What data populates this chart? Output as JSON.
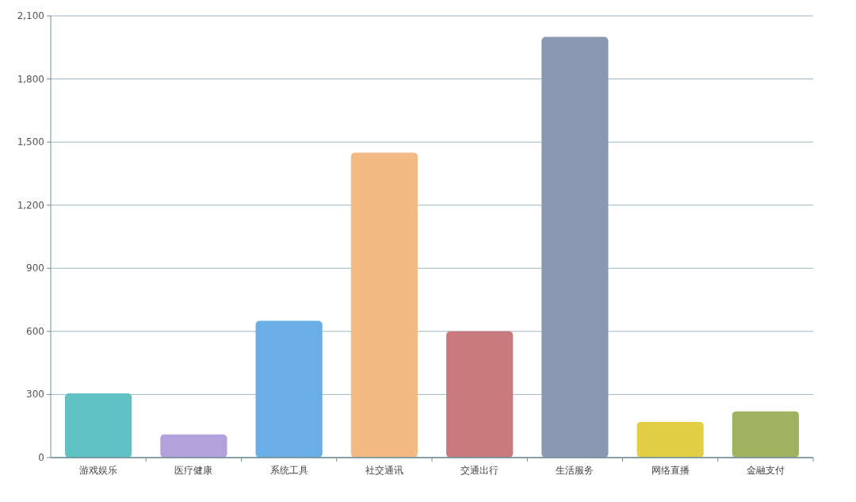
{
  "chart_data": {
    "type": "bar",
    "categories": [
      "游戏娱乐",
      "医疗健康",
      "系统工具",
      "社交通讯",
      "交通出行",
      "生活服务",
      "网络直播",
      "金融支付"
    ],
    "values": [
      305,
      110,
      650,
      1450,
      600,
      2000,
      170,
      220
    ],
    "colors": [
      "#61c2c4",
      "#b2a2dc",
      "#6aaee8",
      "#f4ba85",
      "#c97a7c",
      "#8a98b2",
      "#e3cf45",
      "#9db35f"
    ],
    "ylim": [
      0,
      2100
    ],
    "yticks": [
      0,
      {
        "value": 300,
        "label": "300"
      },
      {
        "value": 600,
        "label": "600"
      },
      {
        "value": 900,
        "label": "900"
      },
      {
        "value": 1200,
        "label": "1,200"
      },
      {
        "value": 1500,
        "label": "1,500"
      },
      {
        "value": 1800,
        "label": "1,800"
      },
      {
        "value": 2100,
        "label": "2,100"
      }
    ],
    "grid": "y"
  }
}
